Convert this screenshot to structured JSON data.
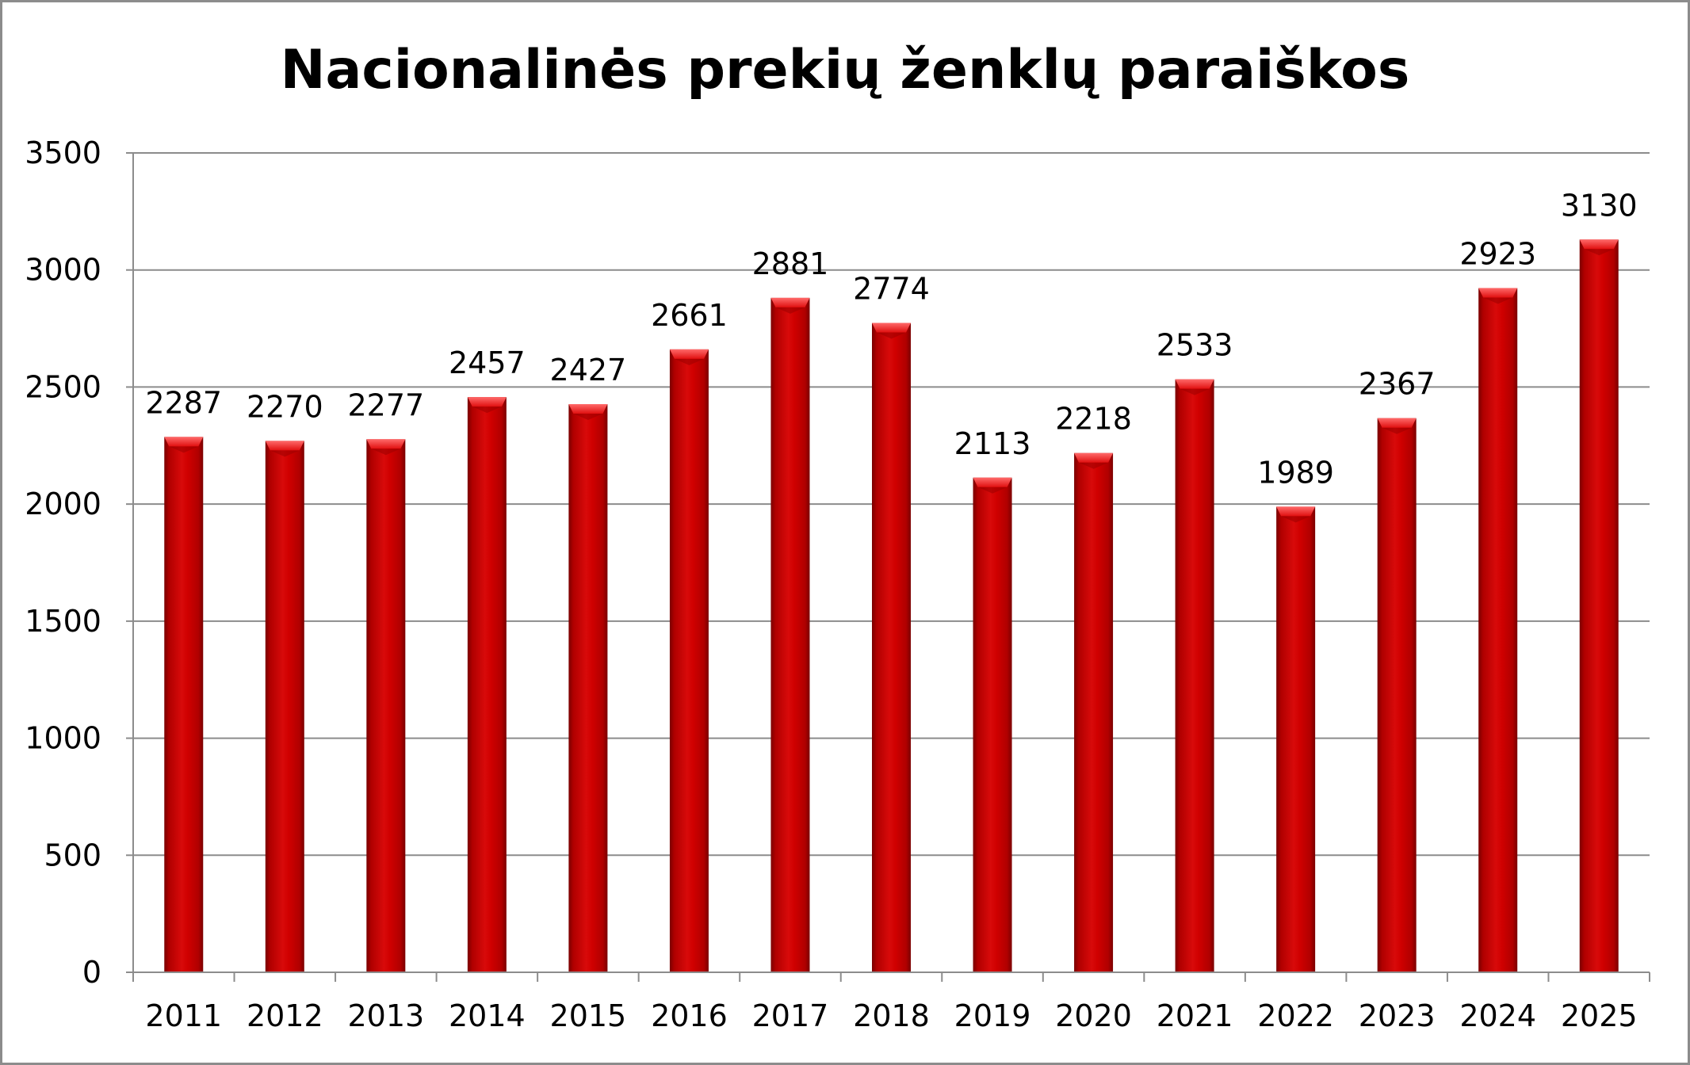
{
  "chart_data": {
    "type": "bar",
    "title": "Nacionalinės prekių ženklų paraiškos",
    "xlabel": "",
    "ylabel": "",
    "categories": [
      "2011",
      "2012",
      "2013",
      "2014",
      "2015",
      "2016",
      "2017",
      "2018",
      "2019",
      "2020",
      "2021",
      "2022",
      "2023",
      "2024",
      "2025"
    ],
    "values": [
      2287,
      2270,
      2277,
      2457,
      2427,
      2661,
      2881,
      2774,
      2113,
      2218,
      2533,
      1989,
      2367,
      2923,
      3130
    ],
    "data_labels": [
      "2287",
      "2270",
      "2277",
      "2457",
      "2427",
      "2661",
      "2881",
      "2774",
      "2113",
      "2218",
      "2533",
      "1989",
      "2367",
      "2923",
      "3130"
    ],
    "ylim": [
      0,
      3500
    ],
    "yticks": [
      0,
      500,
      1000,
      1500,
      2000,
      2500,
      3000,
      3500
    ],
    "ytick_labels": [
      "0",
      "500",
      "1000",
      "1500",
      "2000",
      "2500",
      "3000",
      "3500"
    ],
    "grid": true,
    "legend": "none",
    "colors": {
      "bar": "#cc0000",
      "bar_highlight": "#ff4d4d",
      "bar_shadow": "#8a0000",
      "grid": "#8c8c8c",
      "axis": "#8c8c8c",
      "frame": "#8c8c8c"
    }
  }
}
